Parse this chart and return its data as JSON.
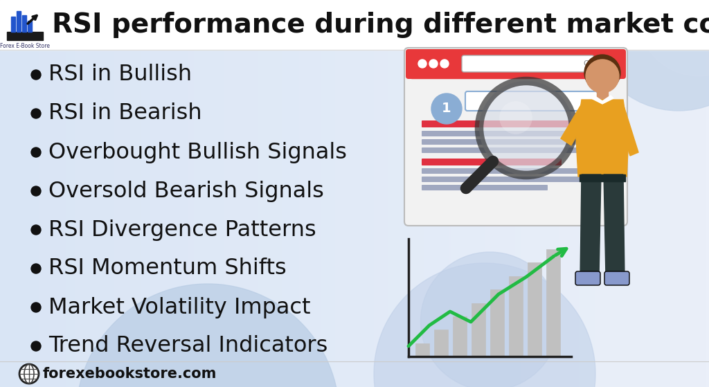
{
  "title": "RSI performance during different market conditions",
  "bullet_items": [
    "RSI in Bullish",
    "RSI in Bearish",
    "Overbought Bullish Signals",
    "Oversold Bearish Signals",
    "RSI Divergence Patterns",
    "RSI Momentum Shifts",
    "Market Volatility Impact",
    "Trend Reversal Indicators"
  ],
  "footer_text": "forexebookstore.com",
  "bg_color": "#E8EEF8",
  "title_color": "#111111",
  "bullet_color": "#111111",
  "bullet_font_size": 23,
  "title_font_size": 28,
  "light_blue_blob": "#BFD0EA",
  "browser_red": "#E8383A",
  "browser_gray": "#F0F0F0",
  "browser_border": "#CCCCCC",
  "badge_blue": "#7BA7D8",
  "line_red": "#E8383A",
  "line_gray": "#AAAACC",
  "bar_color": "#C8C8C8",
  "arrow_green": "#22BB44",
  "chart_axis_color": "#222222",
  "person_skin": "#D4956A",
  "person_yellow": "#E8A020",
  "person_dark": "#2A3A3A",
  "person_white": "#FFFFFF"
}
